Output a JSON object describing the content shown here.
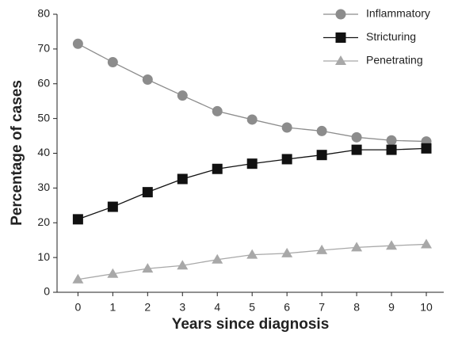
{
  "chart_data": {
    "type": "line",
    "x_label": "Years since diagnosis",
    "y_label": "Percentage of cases",
    "x": [
      0,
      1,
      2,
      3,
      4,
      5,
      6,
      7,
      8,
      9,
      10
    ],
    "xlim": [
      -0.6,
      10.5
    ],
    "xticks": [
      0,
      1,
      2,
      3,
      4,
      5,
      6,
      7,
      8,
      9,
      10
    ],
    "ylim": [
      0,
      80
    ],
    "yticks": [
      0,
      10,
      20,
      30,
      40,
      50,
      60,
      70,
      80
    ],
    "legend": "top-right",
    "series": [
      {
        "name": "Inflammatory",
        "color": "#8c8c8c",
        "marker": "circle",
        "values": [
          71.5,
          66.2,
          61.2,
          56.6,
          52.1,
          49.7,
          47.4,
          46.4,
          44.6,
          43.7,
          43.4
        ]
      },
      {
        "name": "Stricturing",
        "color": "#111111",
        "marker": "square",
        "values": [
          21.0,
          24.6,
          28.8,
          32.6,
          35.5,
          37.0,
          38.3,
          39.5,
          41.0,
          41.0,
          41.4
        ]
      },
      {
        "name": "Penetrating",
        "color": "#a8a8a8",
        "marker": "triangle",
        "values": [
          3.7,
          5.3,
          6.8,
          7.7,
          9.4,
          10.8,
          11.2,
          12.1,
          12.9,
          13.4,
          13.8
        ]
      }
    ]
  }
}
